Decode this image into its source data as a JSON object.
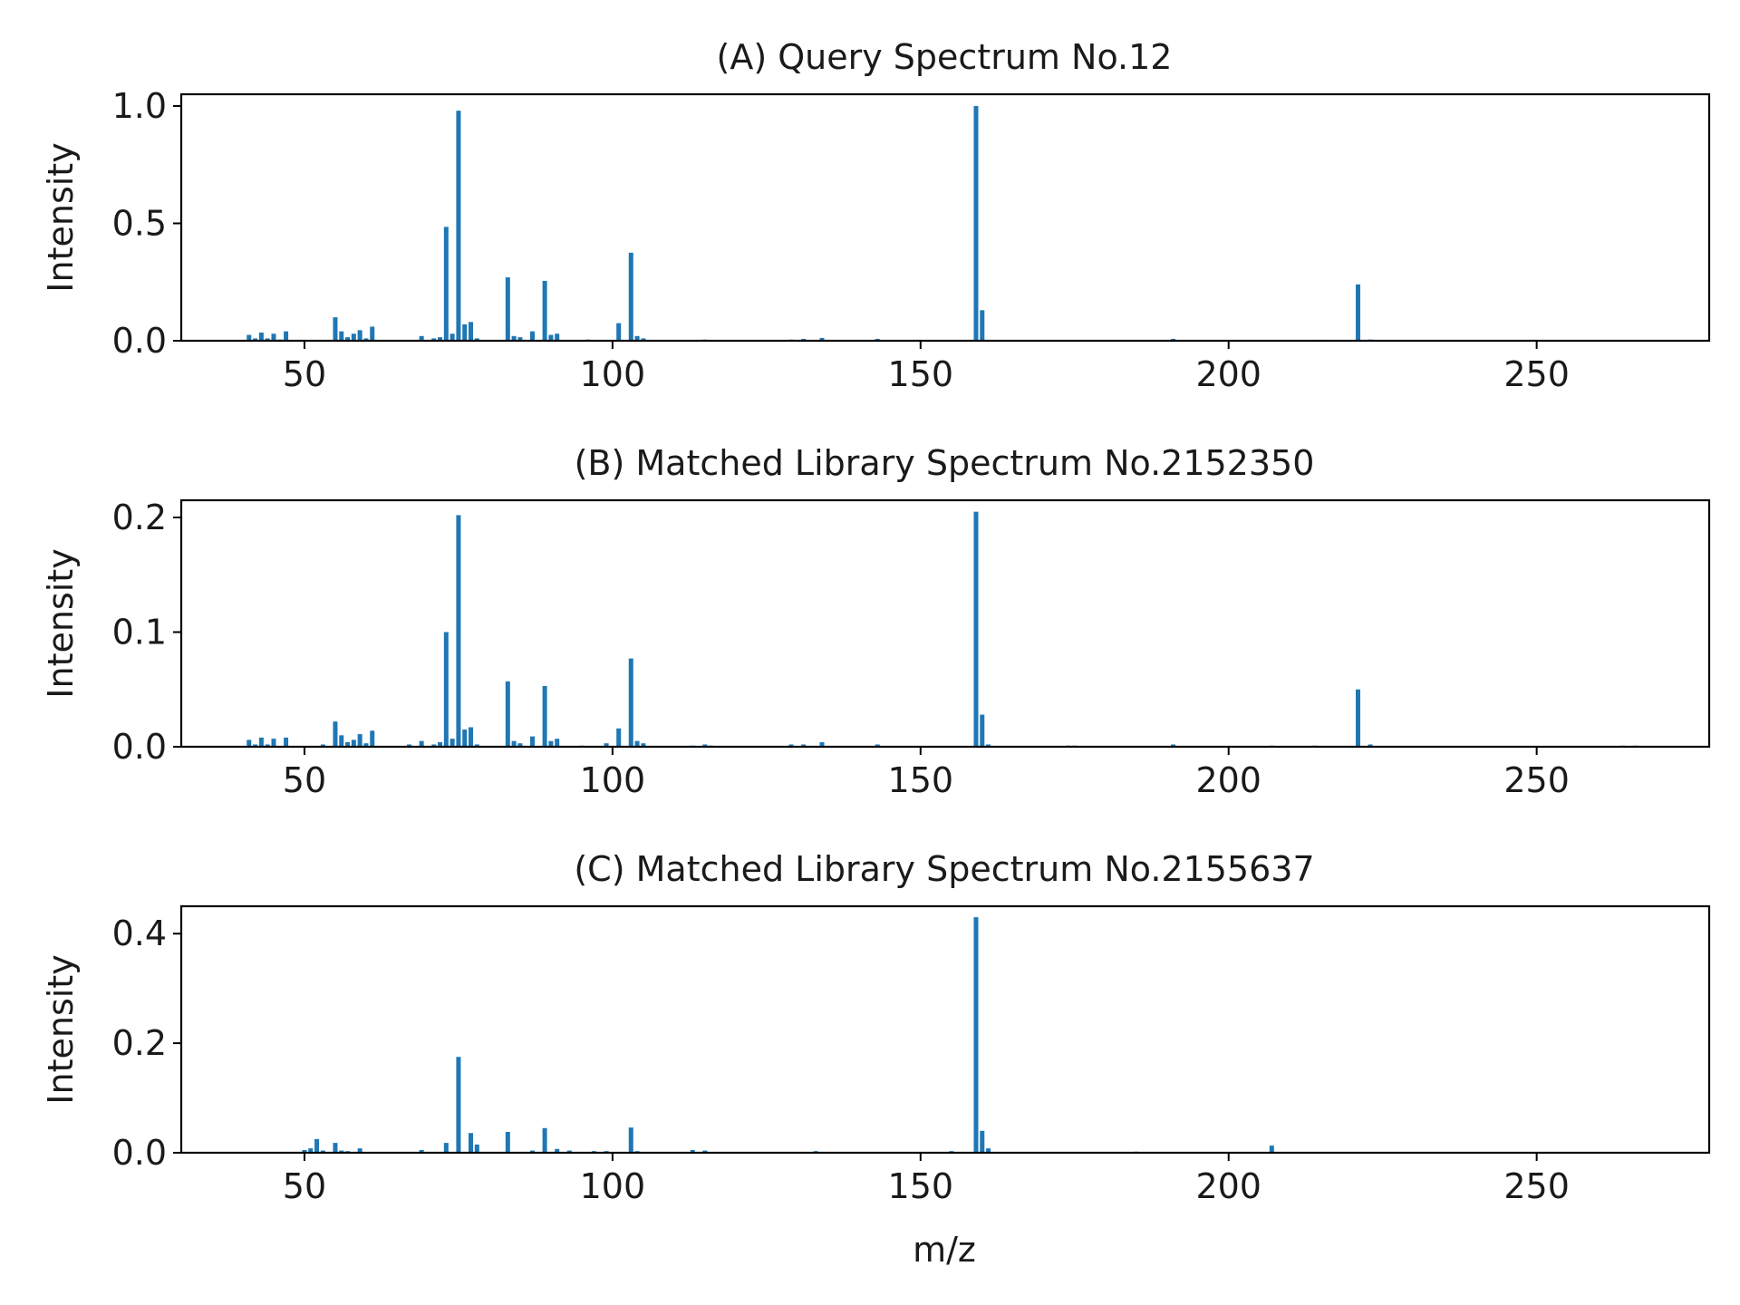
{
  "chart_data": [
    {
      "type": "bar",
      "title": "(A) Query Spectrum No.12",
      "ylabel": "Intensity",
      "xlabel": "",
      "xlim": [
        30,
        278
      ],
      "ylim": [
        0,
        1.05
      ],
      "x_ticks": [
        50,
        100,
        150,
        200,
        250
      ],
      "x_tick_labels": [
        "50",
        "100",
        "150",
        "200",
        "250"
      ],
      "y_ticks": [
        0.0,
        0.5,
        1.0
      ],
      "y_tick_labels": [
        "0.0",
        "0.5",
        "1.0"
      ],
      "grid": false,
      "color": "#1f77b4",
      "points": [
        [
          41,
          0.025
        ],
        [
          42,
          0.01
        ],
        [
          43,
          0.035
        ],
        [
          44,
          0.01
        ],
        [
          45,
          0.03
        ],
        [
          46,
          0.005
        ],
        [
          47,
          0.04
        ],
        [
          50,
          0.003
        ],
        [
          55,
          0.1
        ],
        [
          56,
          0.04
        ],
        [
          57,
          0.015
        ],
        [
          58,
          0.03
        ],
        [
          59,
          0.045
        ],
        [
          60,
          0.01
        ],
        [
          61,
          0.06
        ],
        [
          69,
          0.02
        ],
        [
          71,
          0.01
        ],
        [
          72,
          0.015
        ],
        [
          73,
          0.485
        ],
        [
          74,
          0.03
        ],
        [
          75,
          0.98
        ],
        [
          76,
          0.07
        ],
        [
          77,
          0.08
        ],
        [
          78,
          0.01
        ],
        [
          83,
          0.27
        ],
        [
          84,
          0.02
        ],
        [
          85,
          0.015
        ],
        [
          87,
          0.04
        ],
        [
          89,
          0.255
        ],
        [
          90,
          0.025
        ],
        [
          91,
          0.03
        ],
        [
          96,
          0.005
        ],
        [
          101,
          0.075
        ],
        [
          103,
          0.375
        ],
        [
          104,
          0.02
        ],
        [
          105,
          0.01
        ],
        [
          115,
          0.005
        ],
        [
          129,
          0.005
        ],
        [
          131,
          0.008
        ],
        [
          134,
          0.012
        ],
        [
          143,
          0.008
        ],
        [
          159,
          1.0
        ],
        [
          160,
          0.13
        ],
        [
          191,
          0.008
        ],
        [
          215,
          0.004
        ],
        [
          221,
          0.24
        ],
        [
          223,
          0.005
        ]
      ]
    },
    {
      "type": "bar",
      "title": "(B) Matched Library Spectrum No.2152350",
      "ylabel": "Intensity",
      "xlabel": "",
      "xlim": [
        30,
        278
      ],
      "ylim": [
        0,
        0.215
      ],
      "x_ticks": [
        50,
        100,
        150,
        200,
        250
      ],
      "x_tick_labels": [
        "50",
        "100",
        "150",
        "200",
        "250"
      ],
      "y_ticks": [
        0.0,
        0.1,
        0.2
      ],
      "y_tick_labels": [
        "0.0",
        "0.1",
        "0.2"
      ],
      "grid": false,
      "color": "#1f77b4",
      "points": [
        [
          41,
          0.006
        ],
        [
          42,
          0.002
        ],
        [
          43,
          0.008
        ],
        [
          44,
          0.002
        ],
        [
          45,
          0.007
        ],
        [
          47,
          0.008
        ],
        [
          53,
          0.002
        ],
        [
          55,
          0.022
        ],
        [
          56,
          0.01
        ],
        [
          57,
          0.004
        ],
        [
          58,
          0.006
        ],
        [
          59,
          0.011
        ],
        [
          60,
          0.003
        ],
        [
          61,
          0.014
        ],
        [
          67,
          0.002
        ],
        [
          69,
          0.005
        ],
        [
          71,
          0.002
        ],
        [
          72,
          0.004
        ],
        [
          73,
          0.1
        ],
        [
          74,
          0.007
        ],
        [
          75,
          0.202
        ],
        [
          76,
          0.015
        ],
        [
          77,
          0.017
        ],
        [
          78,
          0.002
        ],
        [
          83,
          0.057
        ],
        [
          84,
          0.005
        ],
        [
          85,
          0.003
        ],
        [
          87,
          0.009
        ],
        [
          89,
          0.053
        ],
        [
          90,
          0.005
        ],
        [
          91,
          0.007
        ],
        [
          95,
          0.001
        ],
        [
          99,
          0.003
        ],
        [
          101,
          0.016
        ],
        [
          103,
          0.077
        ],
        [
          104,
          0.005
        ],
        [
          105,
          0.003
        ],
        [
          113,
          0.001
        ],
        [
          115,
          0.002
        ],
        [
          116,
          0.001
        ],
        [
          129,
          0.002
        ],
        [
          131,
          0.002
        ],
        [
          134,
          0.004
        ],
        [
          143,
          0.002
        ],
        [
          159,
          0.205
        ],
        [
          160,
          0.028
        ],
        [
          161,
          0.002
        ],
        [
          174,
          0.001
        ],
        [
          175,
          0.001
        ],
        [
          191,
          0.002
        ],
        [
          207,
          0.001
        ],
        [
          214,
          0.001
        ],
        [
          221,
          0.05
        ],
        [
          223,
          0.002
        ],
        [
          264,
          0.001
        ],
        [
          266,
          0.001
        ]
      ]
    },
    {
      "type": "bar",
      "title": "(C) Matched Library Spectrum No.2155637",
      "ylabel": "Intensity",
      "xlabel": "m/z",
      "xlim": [
        30,
        278
      ],
      "ylim": [
        0,
        0.45
      ],
      "x_ticks": [
        50,
        100,
        150,
        200,
        250
      ],
      "x_tick_labels": [
        "50",
        "100",
        "150",
        "200",
        "250"
      ],
      "y_ticks": [
        0.0,
        0.2,
        0.4
      ],
      "y_tick_labels": [
        "0.0",
        "0.2",
        "0.4"
      ],
      "grid": false,
      "color": "#1f77b4",
      "points": [
        [
          50,
          0.005
        ],
        [
          51,
          0.008
        ],
        [
          52,
          0.025
        ],
        [
          53,
          0.004
        ],
        [
          55,
          0.018
        ],
        [
          56,
          0.004
        ],
        [
          57,
          0.003
        ],
        [
          59,
          0.008
        ],
        [
          69,
          0.005
        ],
        [
          73,
          0.018
        ],
        [
          75,
          0.175
        ],
        [
          77,
          0.036
        ],
        [
          78,
          0.015
        ],
        [
          83,
          0.038
        ],
        [
          87,
          0.004
        ],
        [
          89,
          0.045
        ],
        [
          91,
          0.007
        ],
        [
          93,
          0.004
        ],
        [
          97,
          0.003
        ],
        [
          99,
          0.003
        ],
        [
          103,
          0.046
        ],
        [
          104,
          0.003
        ],
        [
          113,
          0.005
        ],
        [
          115,
          0.004
        ],
        [
          133,
          0.003
        ],
        [
          155,
          0.003
        ],
        [
          159,
          0.43
        ],
        [
          160,
          0.04
        ],
        [
          161,
          0.008
        ],
        [
          185,
          0.002
        ],
        [
          207,
          0.013
        ]
      ]
    }
  ]
}
